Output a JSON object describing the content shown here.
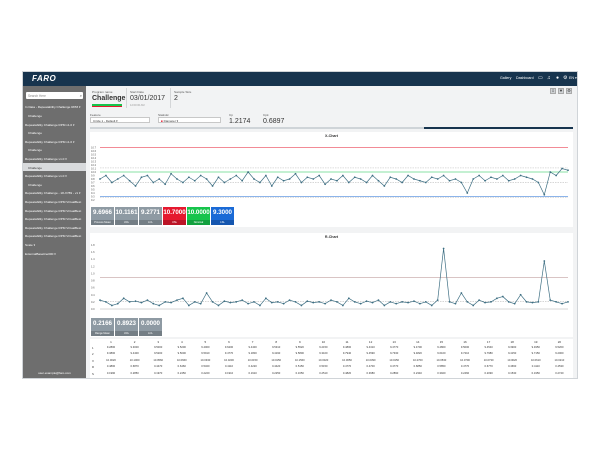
{
  "header": {
    "logo": "FARO",
    "nav": [
      "Gallery",
      "Dashboard"
    ],
    "lang": "EN ▾",
    "icons": [
      "folder-icon",
      "bell-icon",
      "user-icon",
      "settings-icon"
    ]
  },
  "sidebar": {
    "search_placeholder": "Search Here",
    "items": [
      {
        "label": "In Data - Repeatability Challenge RPM ▾",
        "child": false
      },
      {
        "label": "Challenge",
        "child": true
      },
      {
        "label": "Repeatability Challenge RPM v1.0 ▾",
        "child": false
      },
      {
        "label": "Challenge",
        "child": true
      },
      {
        "label": "Repeatability Challenge RPM v1.0 ▾",
        "child": false
      },
      {
        "label": "Challenge",
        "child": true
      },
      {
        "label": "Repeatability Challenge v1.0 ▾",
        "child": false
      },
      {
        "label": "Challenge",
        "child": true,
        "active": true
      },
      {
        "label": "Repeatability Challenge v1.0 ▾",
        "child": false
      },
      {
        "label": "Challenge",
        "child": true
      },
      {
        "label": "Repeatability Challenge - 18-X789 - v1 ▾",
        "child": false
      },
      {
        "label": "Repeatability Challenge RPM VirtualBest",
        "child": false
      },
      {
        "label": "Repeatability Challenge RPM VirtualBest",
        "child": false
      },
      {
        "label": "Repeatability Challenge RPM VirtualBest",
        "child": false
      },
      {
        "label": "Repeatability Challenge RPM VirtualBest",
        "child": false
      },
      {
        "label": "Repeatability Challenge RPM VirtualBest",
        "child": false
      },
      {
        "label": "Scale ▾",
        "child": false
      },
      {
        "label": "ExternalBaseline000 ▾",
        "child": false
      }
    ],
    "email": "user.example@faro.com"
  },
  "summary": {
    "program_label": "Program name",
    "program_value": "Challenge",
    "start_label": "Start Date",
    "start_value": "03/01/2017",
    "start_sub": "12:00:00 AM",
    "sample_label": "Sample Size",
    "sample_value": "2"
  },
  "filters": {
    "feature_label": "Feature",
    "feature_value": "Circle 1 - Default ▾",
    "statistic_label": "Statistic",
    "statistic_value": "Diameter ▾",
    "cp_label": "Cp",
    "cp_value": "1.2174",
    "cpk_label": "Cpk",
    "cpk_value": "0.6897"
  },
  "toolbar": {
    "icons": [
      "export-icon",
      "filter-icon",
      "settings-icon"
    ],
    "glyphs": [
      "⇩",
      "▼",
      "⚙"
    ]
  },
  "xbar_stats": [
    {
      "value": "9.6966",
      "label": "Process Mean",
      "color": "#8e9aa3"
    },
    {
      "value": "10.1161",
      "label": "UCL",
      "color": "#8e9aa3"
    },
    {
      "value": "9.2771",
      "label": "LCL",
      "color": "#8e9aa3"
    },
    {
      "value": "10.7000",
      "label": "USL",
      "color": "#e5192f"
    },
    {
      "value": "10.0000",
      "label": "Nominal",
      "color": "#17c44c"
    },
    {
      "value": "9.3000",
      "label": "LSL",
      "color": "#1a6ad6"
    }
  ],
  "r_stats": [
    {
      "value": "0.2166",
      "label": "Range Mean",
      "color": "#8e9aa3"
    },
    {
      "value": "0.8923",
      "label": "UCL",
      "color": "#8e9aa3"
    },
    {
      "value": "0.0000",
      "label": "LCL",
      "color": "#8e9aa3"
    }
  ],
  "chart_data": [
    {
      "type": "line",
      "title": "X-Chart",
      "x": [
        1,
        2,
        3,
        4,
        5,
        6,
        7,
        8,
        9,
        10,
        11,
        12,
        13,
        14,
        15,
        16,
        17,
        18,
        19,
        20,
        21,
        22,
        23,
        24,
        25,
        26,
        27,
        28,
        29,
        30,
        31,
        32,
        33,
        34,
        35,
        36,
        37,
        38,
        39,
        40,
        41,
        42,
        43,
        44,
        45,
        46,
        47,
        48,
        49,
        50,
        51,
        52,
        53,
        54,
        55,
        56,
        57,
        58,
        59,
        60,
        61,
        62,
        63,
        64,
        65,
        66,
        67,
        68,
        69,
        70,
        71,
        72,
        73,
        74,
        75,
        76,
        77,
        78,
        79,
        80
      ],
      "values": [
        9.8,
        9.9,
        9.7,
        9.8,
        9.9,
        9.75,
        9.6,
        9.85,
        9.9,
        9.7,
        9.8,
        9.65,
        9.95,
        9.8,
        9.7,
        9.85,
        9.75,
        9.9,
        9.8,
        9.6,
        9.85,
        9.7,
        9.8,
        9.9,
        9.75,
        10.0,
        9.8,
        9.7,
        9.9,
        9.6,
        9.85,
        9.75,
        9.8,
        9.95,
        9.7,
        9.85,
        9.8,
        9.9,
        9.65,
        9.8,
        9.75,
        9.9,
        9.7,
        9.85,
        9.8,
        9.7,
        9.9,
        9.75,
        9.6,
        9.85,
        9.8,
        9.7,
        9.9,
        9.8,
        9.75,
        9.7,
        9.85,
        9.8,
        9.9,
        9.75,
        9.8,
        9.7,
        9.4,
        9.8,
        9.9,
        9.75,
        9.85,
        9.8,
        9.9,
        9.75,
        9.8,
        9.9,
        9.85,
        9.8,
        9.7,
        9.35,
        10.0,
        9.9,
        10.1,
        10.05
      ],
      "ylim": [
        9.2,
        10.8
      ],
      "ytick_labels": [
        "10.7",
        "10.6",
        "10.5",
        "10.4",
        "10.3",
        "10.2",
        "10.1",
        "10.0",
        "9.9",
        "9.8",
        "9.7",
        "9.6",
        "9.5",
        "9.4",
        "9.3",
        "9.2"
      ],
      "lines": {
        "usl": 10.7,
        "ucl": 10.1161,
        "nominal": 10.0,
        "mean": 9.6966,
        "lcl": 9.2771,
        "lsl": 9.3
      },
      "grid": false
    },
    {
      "type": "line",
      "title": "R-Chart",
      "x": [
        1,
        2,
        3,
        4,
        5,
        6,
        7,
        8,
        9,
        10,
        11,
        12,
        13,
        14,
        15,
        16,
        17,
        18,
        19,
        20,
        21,
        22,
        23,
        24,
        25,
        26,
        27,
        28,
        29,
        30,
        31,
        32,
        33,
        34,
        35,
        36,
        37,
        38,
        39,
        40,
        41,
        42,
        43,
        44,
        45,
        46,
        47,
        48,
        49,
        50,
        51,
        52,
        53,
        54,
        55,
        56,
        57,
        58,
        59,
        60,
        61,
        62,
        63,
        64,
        65,
        66,
        67,
        68,
        69,
        70,
        71,
        72,
        73,
        74,
        75,
        76,
        77,
        78,
        79,
        80
      ],
      "values": [
        0.25,
        0.2,
        0.1,
        0.15,
        0.3,
        0.2,
        0.22,
        0.18,
        0.25,
        0.15,
        0.1,
        0.2,
        0.18,
        0.25,
        0.3,
        0.1,
        0.2,
        0.15,
        0.45,
        0.2,
        0.1,
        0.22,
        0.18,
        0.2,
        0.25,
        0.15,
        0.2,
        0.1,
        0.3,
        0.18,
        0.2,
        0.15,
        0.25,
        0.2,
        0.1,
        0.22,
        0.18,
        0.2,
        0.15,
        0.25,
        0.2,
        0.1,
        0.3,
        0.2,
        0.15,
        0.22,
        0.18,
        0.25,
        0.1,
        0.2,
        0.15,
        0.2,
        0.18,
        0.22,
        0.15,
        0.2,
        0.1,
        0.25,
        1.7,
        0.2,
        0.15,
        0.45,
        0.2,
        0.1,
        0.25,
        0.18,
        0.2,
        0.3,
        0.35,
        0.2,
        0.15,
        0.4,
        0.2,
        0.18,
        0.2,
        1.35,
        0.25,
        0.2,
        0.15,
        0.2
      ],
      "ylim": [
        0,
        1.8
      ],
      "ytick_labels": [
        "1.8",
        "1.6",
        "1.4",
        "1.2",
        "1.0",
        "0.8",
        "0.6",
        "0.4",
        "0.2",
        "0.0"
      ],
      "lines": {
        "ucl": 0.8923,
        "mean": 0.2166,
        "lcl": 0.0
      },
      "grid": false
    }
  ],
  "table": {
    "columns": [
      "1",
      "2",
      "3",
      "4",
      "5",
      "6",
      "7",
      "8",
      "9",
      "10",
      "11",
      "12",
      "13",
      "14",
      "15",
      "16",
      "17",
      "18",
      "19",
      "20"
    ],
    "row_labels": [
      "1",
      "2",
      "X",
      "R",
      "S"
    ],
    "rows": [
      [
        "9.2800",
        "9.3000",
        "9.5000",
        "9.5200",
        "9.4000",
        "9.6200",
        "9.4400",
        "9.5310",
        "9.5520",
        "9.2150",
        "9.4800",
        "9.4310",
        "9.4770",
        "9.4700",
        "9.4800",
        "9.5000",
        "9.4540",
        "9.3900",
        "9.4950",
        "9.5200"
      ],
      [
        "9.3800",
        "9.4400",
        "9.5200",
        "9.5000",
        "9.5910",
        "9.4770",
        "9.1800",
        "9.4190",
        "9.5800",
        "9.3100",
        "9.7940",
        "9.4590",
        "9.7330",
        "9.4820",
        "9.6100",
        "9.7210",
        "9.7980",
        "9.4150",
        "9.7150",
        "9.2000"
      ],
      [
        "10.0020",
        "10.1000",
        "10.0560",
        "10.0660",
        "10.0330",
        "10.0230",
        "10.0150",
        "10.0150",
        "10.1560",
        "10.0020",
        "10.0650",
        "10.0390",
        "10.0150",
        "10.2700",
        "10.0530",
        "10.0700",
        "10.0730",
        "10.0020",
        "10.0610",
        "10.0210"
      ],
      [
        "0.4800",
        "0.6870",
        "0.4470",
        "0.6460",
        "0.5320",
        "0.4110",
        "0.4220",
        "0.4420",
        "0.5150",
        "0.5150",
        "0.4770",
        "0.4700",
        "0.4770",
        "0.6850",
        "0.5850",
        "0.4770",
        "0.6770",
        "0.4660",
        "0.4110",
        "0.4530"
      ],
      [
        "0.1990",
        "0.2850",
        "0.1970",
        "0.2450",
        "0.2220",
        "0.1910",
        "0.1910",
        "0.2250",
        "0.1650",
        "0.2510",
        "0.4820",
        "0.3680",
        "0.2890",
        "0.2340",
        "0.3920",
        "0.2460",
        "0.2090",
        "0.1530",
        "0.1950",
        "0.2740"
      ]
    ]
  }
}
